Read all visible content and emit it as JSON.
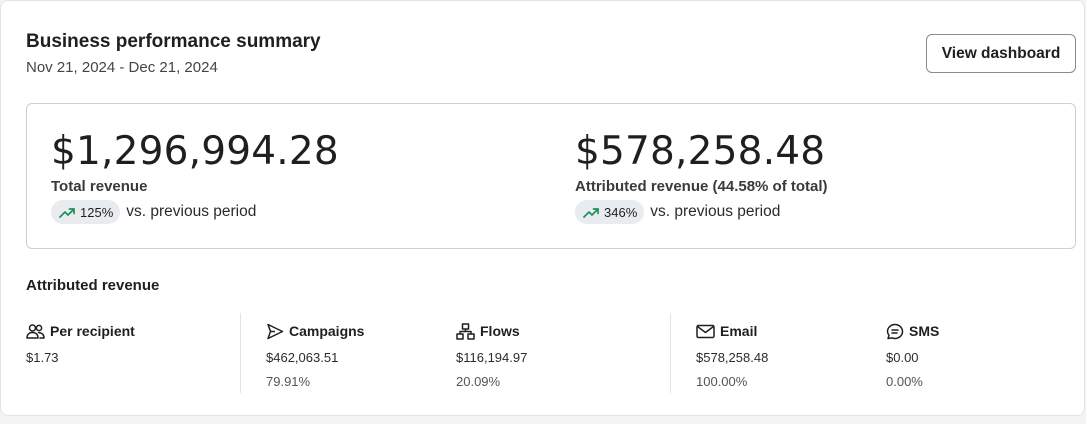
{
  "header": {
    "title": "Business performance summary",
    "date_range": "Nov 21, 2024 - Dec 21, 2024",
    "view_dashboard_label": "View dashboard"
  },
  "revenue": {
    "total": {
      "amount": "$1,296,994.28",
      "label": "Total revenue",
      "change": "125%",
      "comparison": "vs. previous period"
    },
    "attributed": {
      "amount": "$578,258.48",
      "label": "Attributed revenue (44.58% of total)",
      "change": "346%",
      "comparison": "vs. previous period"
    }
  },
  "attributed_section": {
    "title": "Attributed revenue",
    "stats": [
      {
        "name": "Per recipient",
        "icon": "people-icon",
        "value": "$1.73",
        "percent": ""
      },
      {
        "name": "Campaigns",
        "icon": "send-icon",
        "value": "$462,063.51",
        "percent": "79.91%"
      },
      {
        "name": "Flows",
        "icon": "flow-icon",
        "value": "$116,194.97",
        "percent": "20.09%"
      },
      {
        "name": "Email",
        "icon": "mail-icon",
        "value": "$578,258.48",
        "percent": "100.00%"
      },
      {
        "name": "SMS",
        "icon": "chat-icon",
        "value": "$0.00",
        "percent": "0.00%"
      }
    ]
  },
  "colors": {
    "trend_up": "#1f8f5a",
    "pill_bg": "#e9ecef",
    "border": "#cfcfcf"
  }
}
